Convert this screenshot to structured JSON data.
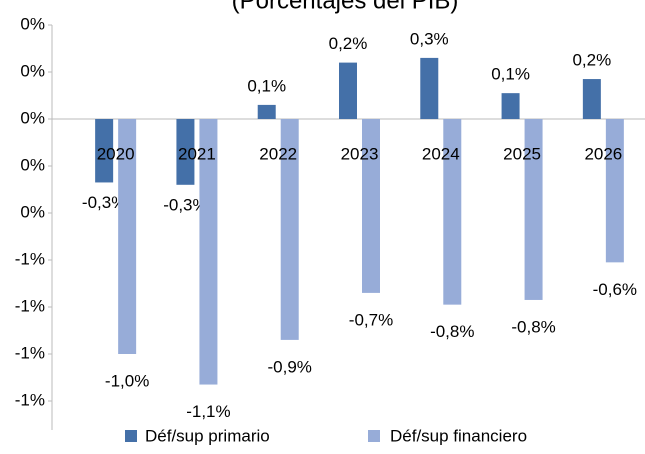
{
  "chart_data": {
    "type": "bar",
    "subtitle": "(Porcentajes del PIB)",
    "categories": [
      "2020",
      "2021",
      "2022",
      "2023",
      "2024",
      "2025",
      "2026"
    ],
    "series": [
      {
        "name": "Déf/sup primario",
        "color": "#4470a8",
        "values": [
          -0.27,
          -0.28,
          0.06,
          0.24,
          0.26,
          0.11,
          0.17
        ],
        "value_labels": [
          "-0,3%",
          "-0,3%",
          "0,1%",
          "0,2%",
          "0,3%",
          "0,1%",
          "0,2%"
        ]
      },
      {
        "name": "Déf/sup financiero",
        "color": "#97acd8",
        "values": [
          -1.0,
          -1.13,
          -0.94,
          -0.74,
          -0.79,
          -0.77,
          -0.61
        ],
        "value_labels": [
          "-1,0%",
          "-1,1%",
          "-0,9%",
          "-0,7%",
          "-0,8%",
          "-0,8%",
          "-0,6%"
        ]
      }
    ],
    "ylim": [
      -1.2,
      0.4
    ],
    "yticks": [
      {
        "value": 0.4,
        "label": "0%"
      },
      {
        "value": 0.2,
        "label": "0%"
      },
      {
        "value": 0,
        "label": "0%"
      },
      {
        "value": -0.2,
        "label": "0%"
      },
      {
        "value": -0.4,
        "label": "0%"
      },
      {
        "value": -0.6,
        "label": "-1%"
      },
      {
        "value": -0.8,
        "label": "-1%"
      },
      {
        "value": -1.0,
        "label": "-1%"
      },
      {
        "value": -1.2,
        "label": "-1%"
      }
    ],
    "legend": "bottom"
  }
}
